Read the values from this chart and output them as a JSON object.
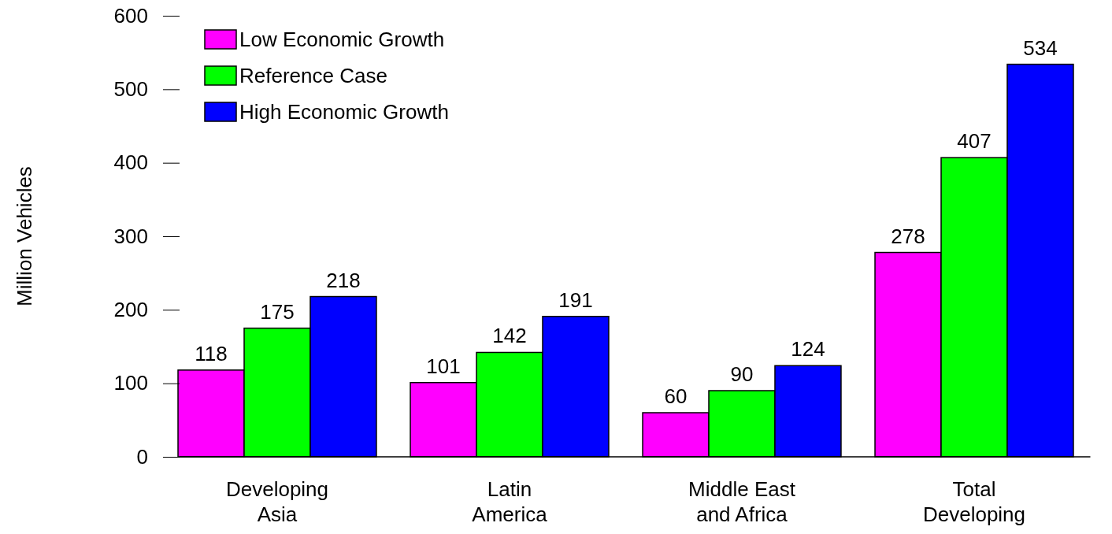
{
  "chart_data": {
    "type": "bar",
    "ylabel": "Million Vehicles",
    "categories": [
      "Developing Asia",
      "Latin America",
      "Middle East and Africa",
      "Total Developing"
    ],
    "series": [
      {
        "name": "Low Economic Growth",
        "color": "#ff00ff",
        "values": [
          118,
          101,
          60,
          278
        ]
      },
      {
        "name": "Reference Case",
        "color": "#00ff00",
        "values": [
          175,
          142,
          90,
          407
        ]
      },
      {
        "name": "High Economic Growth",
        "color": "#0000ff",
        "values": [
          218,
          191,
          124,
          534
        ]
      }
    ],
    "ylim": [
      0,
      600
    ],
    "yticks": [
      0,
      100,
      200,
      300,
      400,
      500,
      600
    ],
    "data_labels": true,
    "legend": "top left",
    "grid": false
  }
}
